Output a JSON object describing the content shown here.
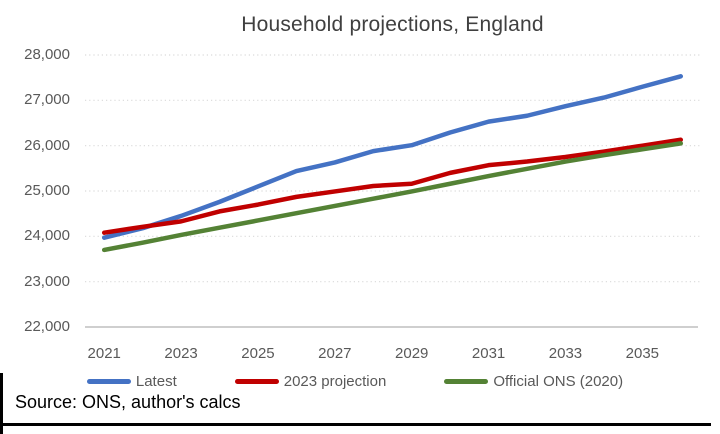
{
  "title": "Household projections, England",
  "source_note": "Source: ONS, author's calcs",
  "legend": [
    {
      "label": "Latest",
      "color": "#4472C4"
    },
    {
      "label": "2023 projection",
      "color": "#C00000"
    },
    {
      "label": "Official ONS (2020)",
      "color": "#548235"
    }
  ],
  "colors": {
    "gridline": "#D9D9D9",
    "axis_line": "#BFBFBF",
    "tick_text": "#595959",
    "title_text": "#404040",
    "border": "#000000"
  },
  "chart_data": {
    "type": "line",
    "title": "Household projections, England",
    "x": [
      2021,
      2022,
      2023,
      2024,
      2025,
      2026,
      2027,
      2028,
      2029,
      2030,
      2031,
      2032,
      2033,
      2034,
      2035,
      2036
    ],
    "x_tick_labels": [
      "2021",
      "2023",
      "2025",
      "2027",
      "2029",
      "2031",
      "2033",
      "2035"
    ],
    "y_ticks": [
      22000,
      23000,
      24000,
      25000,
      26000,
      27000,
      28000
    ],
    "y_tick_labels": [
      "22,000",
      "23,000",
      "24,000",
      "25,000",
      "26,000",
      "27,000",
      "28,000"
    ],
    "ylim": [
      22000,
      28000
    ],
    "grid": "horizontal-dotted",
    "legend_position": "bottom",
    "series": [
      {
        "name": "Latest",
        "color": "#4472C4",
        "values": [
          23970,
          24180,
          24450,
          24760,
          25100,
          25440,
          25630,
          25880,
          26010,
          26290,
          26530,
          26660,
          26870,
          27060,
          27300,
          27530
        ]
      },
      {
        "name": "2023 projection",
        "color": "#C00000",
        "values": [
          24080,
          24210,
          24330,
          24550,
          24700,
          24870,
          24990,
          25110,
          25160,
          25400,
          25570,
          25650,
          25750,
          25870,
          26000,
          26130
        ]
      },
      {
        "name": "Official ONS (2020)",
        "color": "#548235",
        "values": [
          23700,
          23860,
          24030,
          24190,
          24350,
          24510,
          24670,
          24830,
          24990,
          25160,
          25330,
          25490,
          25650,
          25790,
          25920,
          26050
        ]
      }
    ]
  }
}
